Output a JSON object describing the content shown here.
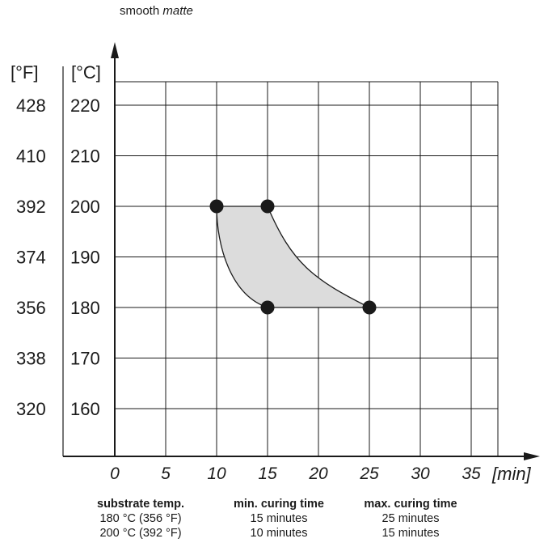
{
  "title": {
    "prefix": "smooth",
    "emph": "matte"
  },
  "chart_data": {
    "type": "area",
    "xlabel": "[min]",
    "ylabel_left": "[°F]",
    "ylabel_right": "[°C]",
    "x_ticks": [
      0,
      5,
      10,
      15,
      20,
      25,
      30,
      35
    ],
    "y_ticks_c": [
      220,
      210,
      200,
      190,
      180,
      170,
      160
    ],
    "y_ticks_f": [
      428,
      410,
      392,
      374,
      356,
      338,
      320
    ],
    "xlim": [
      0,
      37
    ],
    "ylim": [
      150,
      227
    ],
    "grid": true,
    "points": [
      {
        "x": 10,
        "y": 200
      },
      {
        "x": 15,
        "y": 200
      },
      {
        "x": 15,
        "y": 180
      },
      {
        "x": 25,
        "y": 180
      }
    ],
    "region": {
      "min_curve": [
        [
          10,
          200
        ],
        [
          15,
          180
        ]
      ],
      "max_curve": [
        [
          15,
          200
        ],
        [
          25,
          180
        ]
      ],
      "fill": "#dcdcdc"
    }
  },
  "table": {
    "headers": [
      "substrate temp.",
      "min. curing time",
      "max. curing time"
    ],
    "rows": [
      [
        "180 °C (356 °F)",
        "15 minutes",
        "25 minutes"
      ],
      [
        "200 °C (392 °F)",
        "10 minutes",
        "15 minutes"
      ]
    ]
  }
}
